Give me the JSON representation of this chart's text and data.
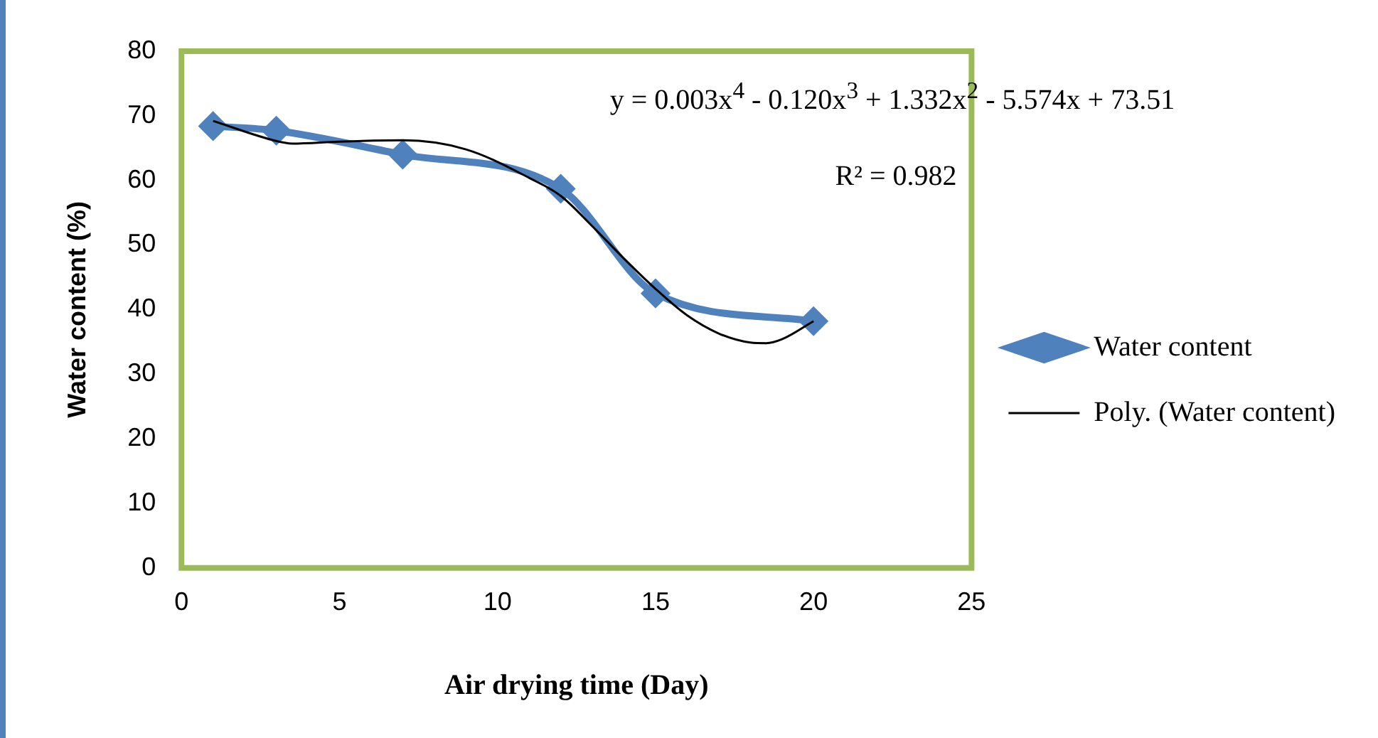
{
  "chart_data": {
    "type": "line",
    "xlabel": "Air drying time (Day)",
    "ylabel": "Water content (%)",
    "xlim": [
      0,
      25
    ],
    "xticks": [
      0,
      5,
      10,
      15,
      20,
      25
    ],
    "ylim": [
      0,
      80
    ],
    "yticks": [
      0,
      10,
      20,
      30,
      40,
      50,
      60,
      70,
      80
    ],
    "grid": false,
    "legend": "right",
    "annotations": [
      "y = 0.003x$^{4}$ - 0.120x$^{3}$ + 1.332x$^{2}$ - 5.574x + 73.51",
      "R² = 0.982"
    ],
    "series": [
      {
        "name": "Water content",
        "color": "#4f81bd",
        "marker": "diamond",
        "x": [
          1,
          3,
          7,
          12,
          15,
          20
        ],
        "values": [
          68.4,
          67.7,
          64.0,
          58.7,
          42.5,
          38.2
        ]
      },
      {
        "name": "Poly. (Water content)",
        "color": "#000000",
        "marker": "none",
        "x": [
          1,
          3,
          3.5,
          5,
          7,
          9,
          11,
          12,
          13,
          14,
          15,
          16,
          17,
          18,
          18.5,
          19,
          20
        ],
        "values": [
          69.2,
          66.1,
          65.7,
          66.0,
          66.2,
          64.8,
          60.4,
          57.6,
          52.9,
          47.9,
          43.2,
          39.1,
          36.3,
          34.9,
          34.8,
          35.4,
          38.2
        ]
      }
    ]
  }
}
